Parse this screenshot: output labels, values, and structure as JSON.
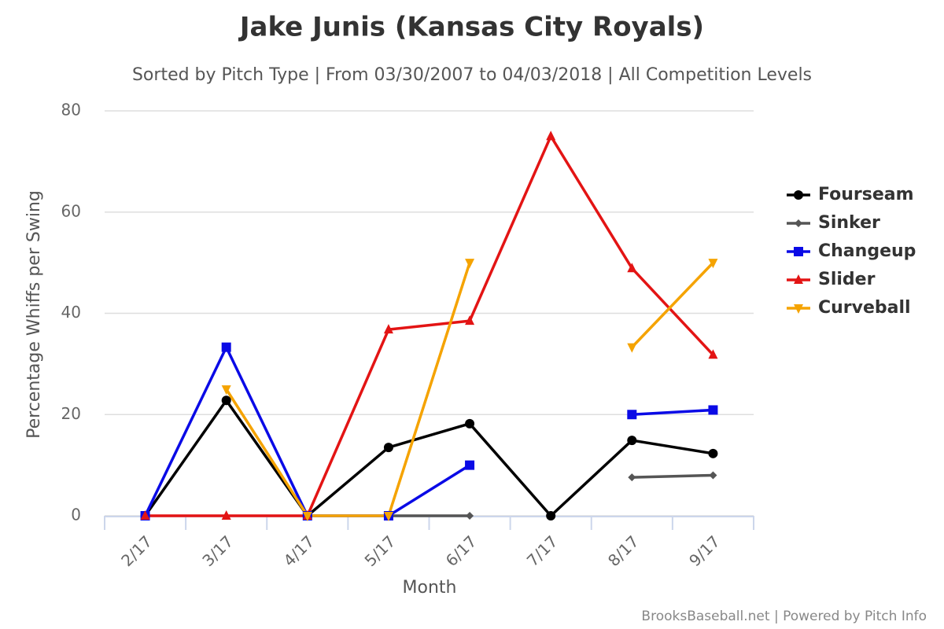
{
  "chart_data": {
    "type": "line",
    "title": "Jake Junis (Kansas City Royals)",
    "subtitle": "Sorted by Pitch Type | From 03/30/2007 to 04/03/2018 | All Competition Levels",
    "x_label": "Month",
    "y_label": "Percentage Whiffs per Swing",
    "credits": "BrooksBaseball.net | Powered by Pitch Info",
    "categories": [
      "2/17",
      "3/17",
      "4/17",
      "5/17",
      "6/17",
      "7/17",
      "8/17",
      "9/17"
    ],
    "ylim": [
      0,
      80
    ],
    "yticks": [
      0,
      20,
      40,
      60,
      80
    ],
    "grid": true,
    "legend": "right",
    "series": [
      {
        "name": "Fourseam",
        "color": "#000000",
        "marker": "circle",
        "values": [
          0,
          22.8,
          0,
          13.5,
          18.2,
          0,
          14.9,
          12.3
        ]
      },
      {
        "name": "Sinker",
        "color": "#555555",
        "marker": "diamond",
        "values": [
          null,
          null,
          null,
          0,
          0,
          null,
          7.6,
          8.0
        ]
      },
      {
        "name": "Changeup",
        "color": "#0a0ae6",
        "marker": "square",
        "values": [
          0,
          33.3,
          0,
          0,
          10.0,
          null,
          20.0,
          20.9
        ]
      },
      {
        "name": "Slider",
        "color": "#e31414",
        "marker": "triangle",
        "values": [
          0,
          0,
          0,
          36.8,
          38.5,
          75.0,
          48.9,
          31.8
        ]
      },
      {
        "name": "Curveball",
        "color": "#f5a300",
        "marker": "triangle-down",
        "values": [
          null,
          25.0,
          0,
          0,
          50.0,
          null,
          33.3,
          50.0
        ]
      }
    ]
  }
}
